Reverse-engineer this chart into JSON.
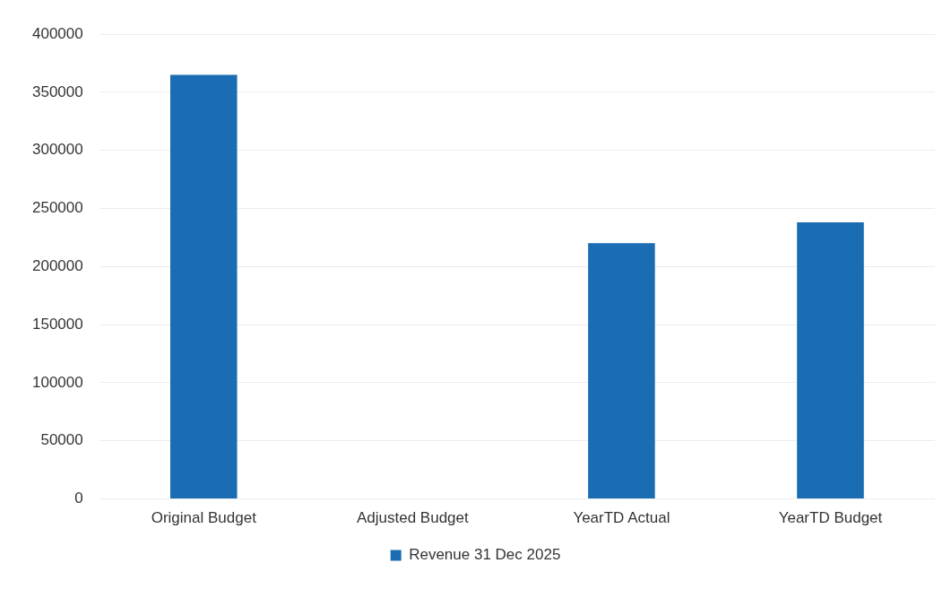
{
  "chart_data": {
    "type": "bar",
    "categories": [
      "Original Budget",
      "Adjusted Budget",
      "YearTD Actual",
      "YearTD Budget"
    ],
    "series": [
      {
        "name": "Revenue 31 Dec 2025",
        "color": "#1b6db3",
        "values": [
          365000,
          0,
          220000,
          238000
        ]
      }
    ],
    "ylim": [
      0,
      400000
    ],
    "yticks": [
      0,
      50000,
      100000,
      150000,
      200000,
      250000,
      300000,
      350000,
      400000
    ],
    "grid": "y",
    "legend": "bottom"
  }
}
